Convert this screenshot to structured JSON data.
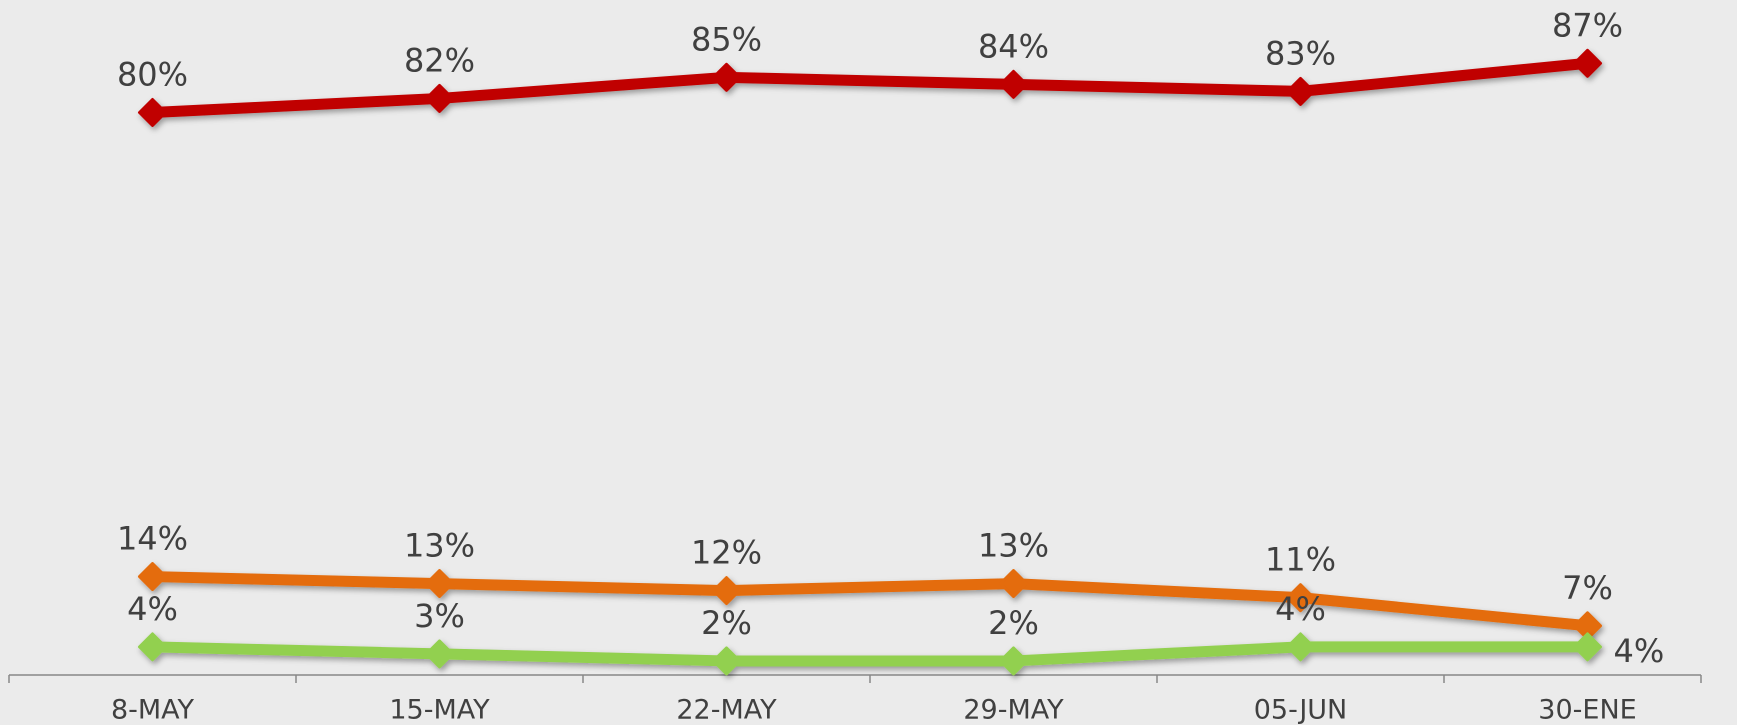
{
  "chart_data": {
    "type": "line",
    "categories": [
      "8-MAY",
      "15-MAY",
      "22-MAY",
      "29-MAY",
      "05-JUN",
      "30-ENE"
    ],
    "ylim": [
      0,
      96
    ],
    "series": [
      {
        "color": "#c00000",
        "values": [
          80,
          82,
          85,
          84,
          83,
          87
        ],
        "value_labels": [
          "80%",
          "82%",
          "85%",
          "84%",
          "83%",
          "87%"
        ]
      },
      {
        "color": "#e46c0a",
        "values": [
          14,
          13,
          12,
          13,
          11,
          7
        ],
        "value_labels": [
          "14%",
          "13%",
          "12%",
          "13%",
          "11%",
          "7%"
        ]
      },
      {
        "color": "#92d050",
        "values": [
          4,
          3,
          2,
          2,
          4,
          4
        ],
        "value_labels": [
          "4%",
          "3%",
          "2%",
          "2%",
          "4%",
          "4%"
        ]
      }
    ]
  }
}
